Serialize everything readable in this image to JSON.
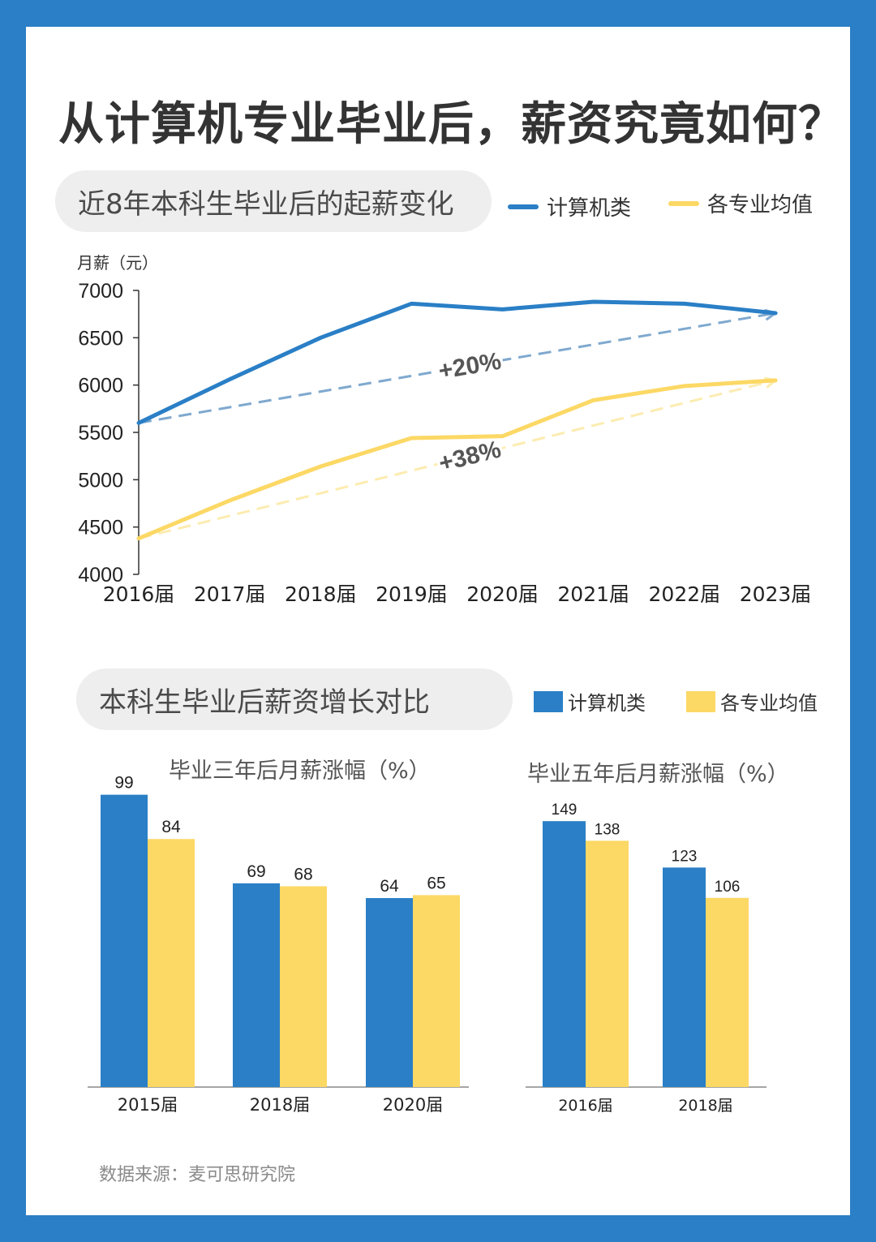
{
  "page": {
    "title": "从计算机专业毕业后，薪资究竟如何？",
    "source": "数据来源：麦可思研究院",
    "colors": {
      "frame": "#2a7fc6",
      "blue": "#2a7fc6",
      "yellow": "#fcd865",
      "blue_dash": "#7fa9cf",
      "yellow_dash": "#fcecb0"
    }
  },
  "section1": {
    "pill": "近8年本科生毕业后的起薪变化",
    "legend": [
      {
        "label": "计算机类"
      },
      {
        "label": "各专业均值"
      }
    ]
  },
  "section2": {
    "pill": "本科生毕业后薪资增长对比",
    "legend": [
      {
        "label": "计算机类"
      },
      {
        "label": "各专业均值"
      }
    ]
  },
  "chart_data": [
    {
      "type": "line",
      "ylabel": "月薪（元）",
      "ylim": [
        4000,
        7000
      ],
      "yticks": [
        4000,
        4500,
        5000,
        5500,
        6000,
        6500,
        7000
      ],
      "categories": [
        "2016届",
        "2017届",
        "2018届",
        "2019届",
        "2020届",
        "2021届",
        "2022届",
        "2023届"
      ],
      "series": [
        {
          "name": "计算机类",
          "values": [
            5600,
            6060,
            6500,
            6860,
            6800,
            6880,
            6860,
            6760
          ]
        },
        {
          "name": "各专业均值",
          "values": [
            4380,
            4780,
            5140,
            5440,
            5460,
            5840,
            5990,
            6050
          ]
        }
      ],
      "annotations": [
        {
          "text": "+20%",
          "from": [
            "2016届",
            5600
          ],
          "to": [
            "2023届",
            6760
          ]
        },
        {
          "text": "+38%",
          "from": [
            "2016届",
            4380
          ],
          "to": [
            "2023届",
            6050
          ]
        }
      ],
      "grid": false,
      "legend": "top-right"
    },
    {
      "type": "bar",
      "title": "毕业三年后月薪涨幅（%）",
      "categories": [
        "2015届",
        "2018届",
        "2020届"
      ],
      "series": [
        {
          "name": "计算机类",
          "values": [
            99,
            69,
            64
          ]
        },
        {
          "name": "各专业均值",
          "values": [
            84,
            68,
            65
          ]
        }
      ],
      "ylim": [
        0,
        105
      ]
    },
    {
      "type": "bar",
      "title": "毕业五年后月薪涨幅（%）",
      "categories": [
        "2016届",
        "2018届"
      ],
      "series": [
        {
          "name": "计算机类",
          "values": [
            149,
            123
          ]
        },
        {
          "name": "各专业均值",
          "values": [
            138,
            106
          ]
        }
      ],
      "ylim": [
        0,
        154
      ]
    }
  ]
}
